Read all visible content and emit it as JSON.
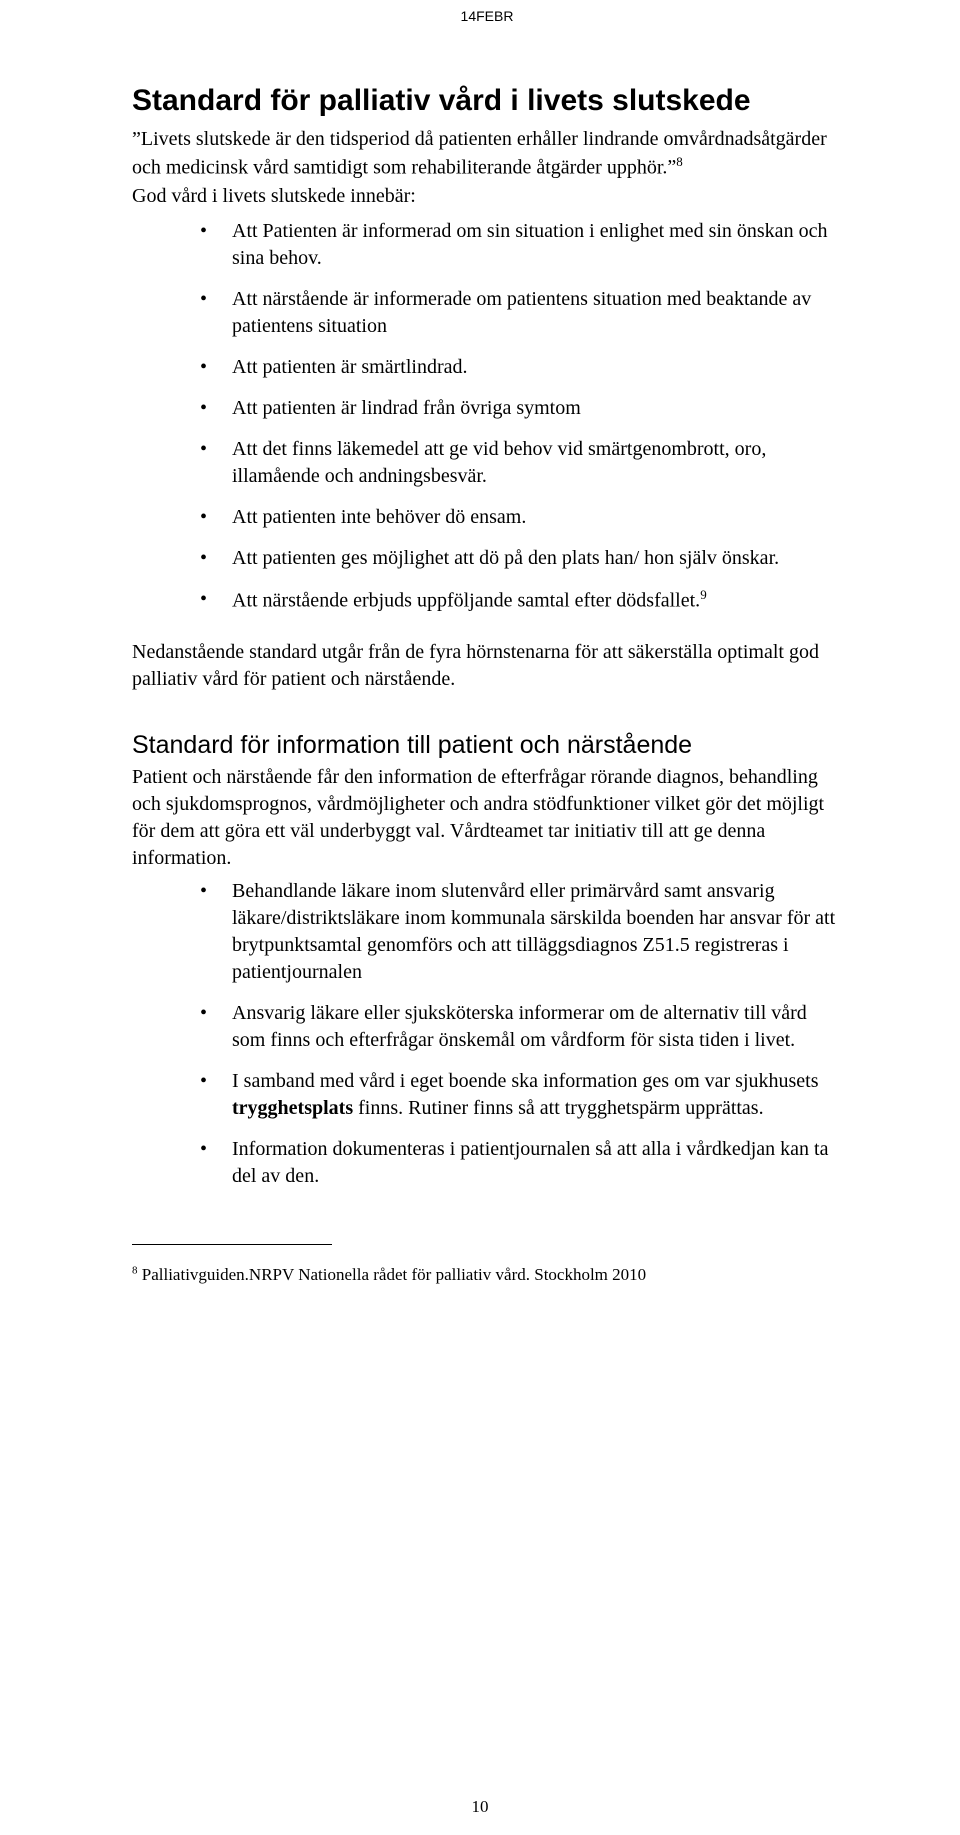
{
  "header_tag": "14FEBR",
  "title": "Standard för palliativ vård i livets slutskede",
  "intro_quote": "Livets slutskede är den tidsperiod då patienten erhåller lindrande omvårdnadsåtgärder och medicinsk vård samtidigt som rehabiliterande åtgärder upphör.",
  "fn8_mark": "8",
  "intro_after": "God vård i livets slutskede innebär:",
  "bullets1": [
    "Att Patienten är informerad om sin situation i enlighet med sin önskan och sina behov.",
    "Att närstående är informerade om patientens situation med beaktande av patientens situation",
    "Att patienten är smärtlindrad.",
    "Att patienten är lindrad från övriga symtom",
    "Att det finns läkemedel att ge vid behov vid smärtgenombrott, oro, illamående och andningsbesvär.",
    "Att patienten inte behöver dö ensam.",
    "Att patienten ges möjlighet att dö på den plats han/ hon själv önskar.",
    "Att närstående erbjuds uppföljande samtal efter dödsfallet."
  ],
  "fn9_mark": "9",
  "summary": "Nedanstående standard utgår från de fyra hörnstenarna för att säkerställa optimalt god palliativ vård för patient och närstående.",
  "h2": "Standard för information till patient och närstående",
  "section2_intro": "Patient och närstående får den information de efterfrågar rörande diagnos, behandling och sjukdomsprognos, vårdmöjligheter och andra stödfunktioner vilket gör det möjligt för dem att göra ett väl underbyggt val. Vårdteamet tar initiativ till att ge denna information.",
  "bullets2": [
    "Behandlande läkare inom slutenvård eller primärvård samt ansvarig läkare/distriktsläkare inom kommunala särskilda boenden har ansvar för att brytpunktsamtal genomförs och att tilläggsdiagnos Z51.5 registreras i patientjournalen",
    "Ansvarig läkare eller sjuksköterska informerar om de alternativ till vård som finns och efterfrågar önskemål om vårdform för sista tiden i livet.",
    "I samband med vård i eget boende ska information ges om var sjukhusets trygghetsplats finns. Rutiner finns så att trygghetspärm upprättas.",
    "Information dokumenteras i patientjournalen så att alla i vårdkedjan kan ta del av den."
  ],
  "bullet2_2_prefix": "I samband med vård i eget boende ska information ges om var sjukhusets ",
  "bullet2_2_bold": "trygghetsplats",
  "bullet2_2_suffix": " finns. Rutiner finns så att trygghetspärm upprättas.",
  "footnote": "Palliativguiden.NRPV Nationella rådet för palliativ vård. Stockholm 2010",
  "page_number": "10"
}
